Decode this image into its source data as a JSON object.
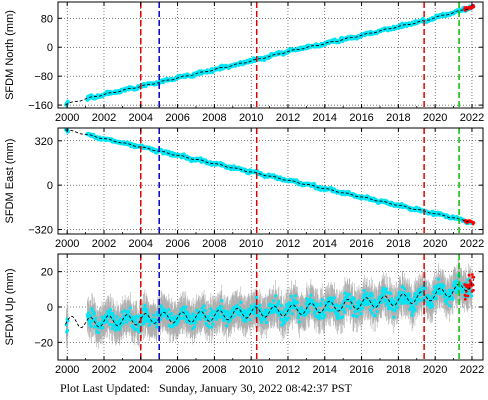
{
  "footer": {
    "label": "Plot Last Updated:",
    "timestamp": "Sunday, January 30, 2022 08:42:37 PST"
  },
  "colors": {
    "data": "#00e5f5",
    "error_bars": "#b0b0b0",
    "model": "#000000",
    "recent": "#ff0000",
    "event_red": "#e00000",
    "event_blue": "#0000c8",
    "event_green": "#00c000"
  },
  "chart_data": [
    {
      "type": "scatter",
      "id": "north",
      "title": "",
      "xlabel": "",
      "ylabel": "SFDM North (mm)",
      "xlim": [
        1999.5,
        2022.6
      ],
      "ylim": [
        -168,
        125
      ],
      "xticks": [
        "2000",
        "2002",
        "2004",
        "2006",
        "2008",
        "2010",
        "2012",
        "2014",
        "2016",
        "2018",
        "2020",
        "2022"
      ],
      "yticks": [
        -160,
        -80,
        0,
        80
      ],
      "grid": true,
      "series": [
        {
          "x": [
            1999.9,
            2001.2,
            2002.0,
            2004.0,
            2005.0,
            2006.0,
            2008.0,
            2010.0,
            2010.4,
            2012.0,
            2014.0,
            2016.0,
            2018.0,
            2019.5,
            2020.0,
            2021.3,
            2021.7,
            2022.1
          ],
          "y": [
            -158,
            -140,
            -131,
            -108,
            -97,
            -85,
            -62,
            -38,
            -33,
            -12,
            10,
            33,
            57,
            74,
            82,
            100,
            106,
            112
          ]
        }
      ]
    },
    {
      "type": "scatter",
      "id": "east",
      "title": "",
      "xlabel": "",
      "ylabel": "SFDM East (mm)",
      "xlim": [
        1999.5,
        2022.6
      ],
      "ylim": [
        -352,
        412
      ],
      "xticks": [
        "2000",
        "2002",
        "2004",
        "2006",
        "2008",
        "2010",
        "2012",
        "2014",
        "2016",
        "2018",
        "2020",
        "2022"
      ],
      "yticks": [
        -320,
        0,
        320
      ],
      "grid": true,
      "series": [
        {
          "x": [
            1999.9,
            2001.2,
            2002.0,
            2004.0,
            2005.0,
            2006.0,
            2008.0,
            2010.0,
            2010.4,
            2012.0,
            2014.0,
            2016.0,
            2018.0,
            2019.5,
            2020.0,
            2021.3,
            2022.1
          ],
          "y": [
            400,
            360,
            335,
            275,
            245,
            215,
            155,
            95,
            83,
            35,
            -25,
            -85,
            -145,
            -190,
            -205,
            -245,
            -270
          ]
        }
      ]
    },
    {
      "type": "scatter",
      "id": "up",
      "title": "",
      "xlabel": "",
      "ylabel": "SFDM Up (mm)",
      "xlim": [
        1999.5,
        2022.6
      ],
      "ylim": [
        -30,
        30
      ],
      "xticks": [
        "2000",
        "2002",
        "2004",
        "2006",
        "2008",
        "2010",
        "2012",
        "2014",
        "2016",
        "2018",
        "2020",
        "2022"
      ],
      "yticks": [
        -20,
        0,
        20
      ],
      "grid": true,
      "series": [
        {
          "x": [
            1999.9,
            2001.2,
            2002.0,
            2004.0,
            2005.0,
            2006.0,
            2008.0,
            2010.0,
            2010.4,
            2012.0,
            2014.0,
            2016.0,
            2018.0,
            2019.5,
            2020.0,
            2021.3,
            2022.1
          ],
          "y": [
            -8,
            -9,
            -8,
            -7,
            -6,
            -6,
            -5,
            -3,
            -3,
            -2,
            0,
            2,
            4,
            6,
            7,
            10,
            14
          ]
        }
      ]
    }
  ],
  "event_lines": [
    {
      "x": 2004.0,
      "color": "event_red"
    },
    {
      "x": 2005.0,
      "color": "event_blue"
    },
    {
      "x": 2010.3,
      "color": "event_red"
    },
    {
      "x": 2019.4,
      "color": "event_red"
    },
    {
      "x": 2021.3,
      "color": "event_green"
    }
  ]
}
